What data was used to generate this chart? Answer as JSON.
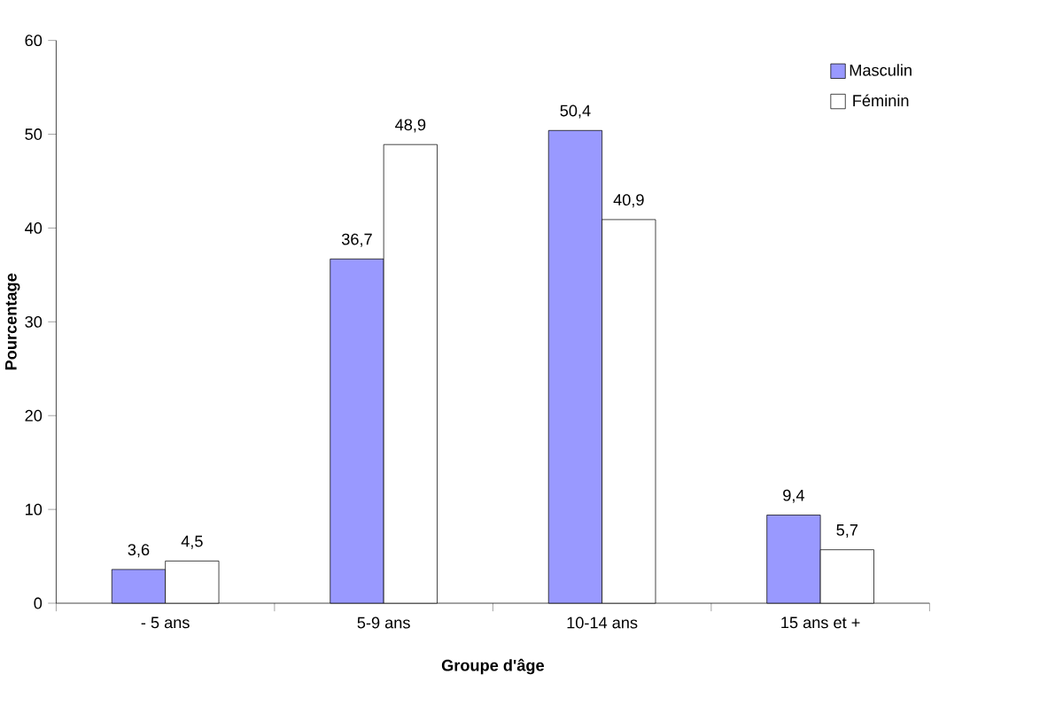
{
  "chart_data": {
    "type": "bar",
    "xlabel": "Groupe d'âge",
    "ylabel": "Pourcentage",
    "categories": [
      "- 5 ans",
      "5-9 ans",
      "10-14 ans",
      "15 ans et +"
    ],
    "series": [
      {
        "name": "Masculin",
        "color": "#9999ff",
        "values": [
          3.6,
          36.7,
          50.4,
          9.4
        ],
        "value_labels": [
          "3,6",
          "36,7",
          "50,4",
          "9,4"
        ]
      },
      {
        "name": "Féminin",
        "color": "#ffffff",
        "values": [
          4.5,
          48.9,
          40.9,
          5.7
        ],
        "value_labels": [
          "4,5",
          "48,9",
          "40,9",
          "5,7"
        ]
      }
    ],
    "ylim": [
      0,
      60
    ],
    "yticks": [
      0,
      10,
      20,
      30,
      40,
      50,
      60
    ],
    "grid": false,
    "legend": "top right"
  }
}
